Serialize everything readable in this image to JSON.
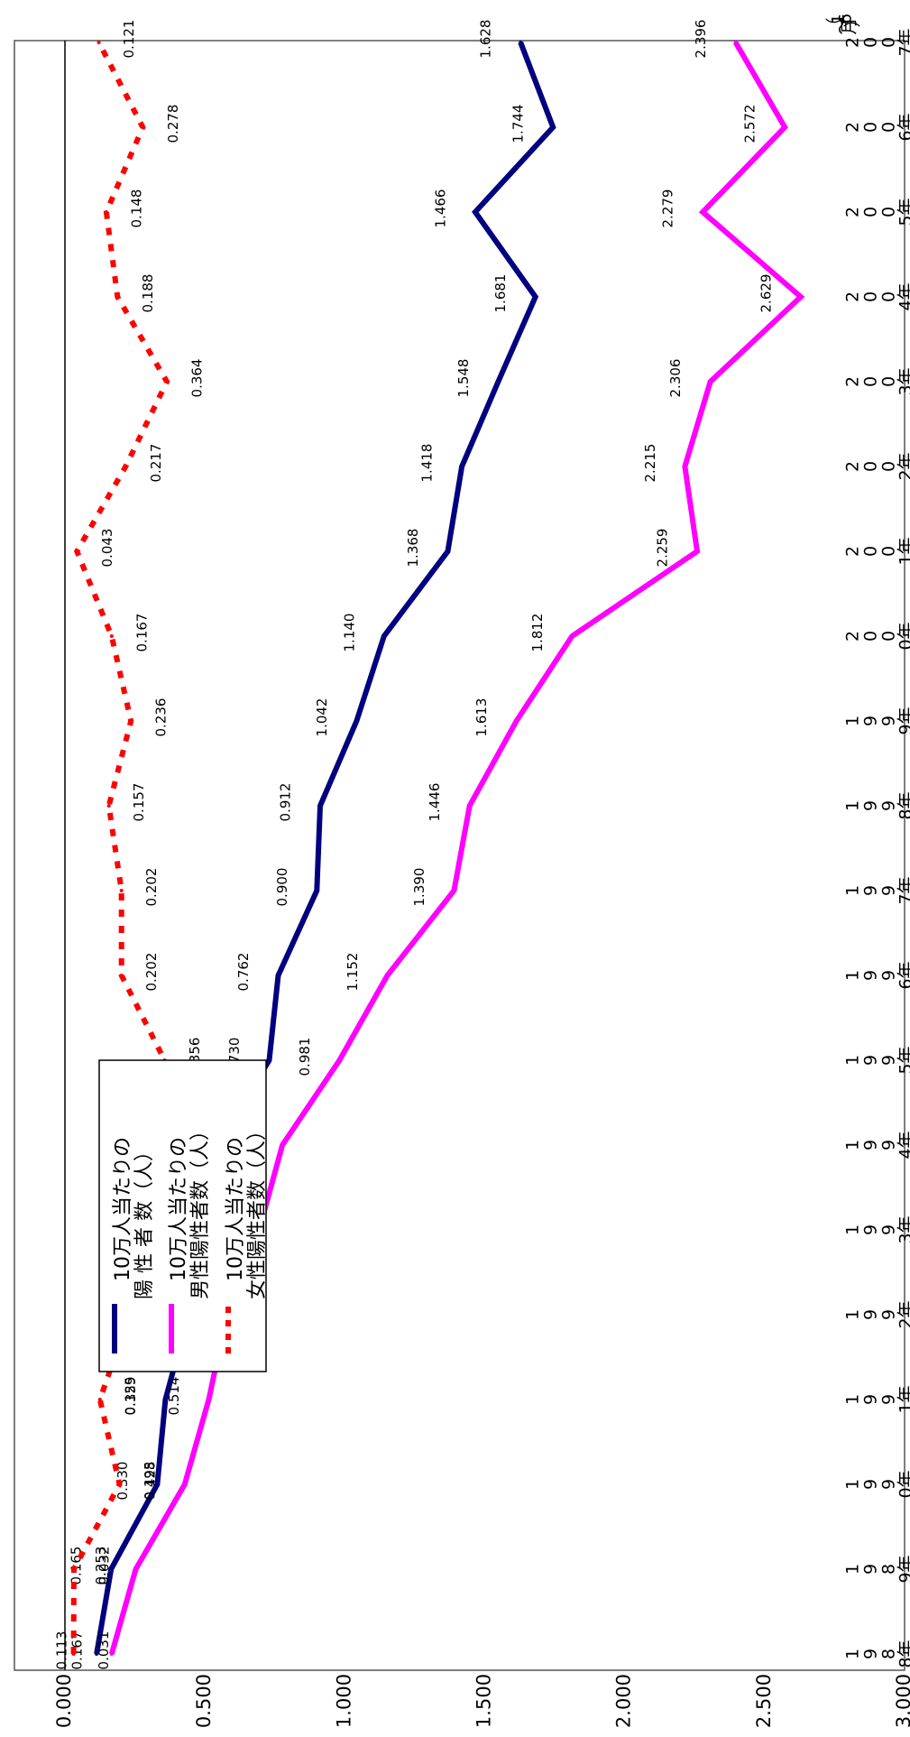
{
  "chart_data": {
    "type": "line",
    "title": "",
    "xlabel": "",
    "ylabel": "",
    "ylim": [
      0,
      3
    ],
    "y_ticks": [
      "0.000",
      "0.500",
      "1.000",
      "1.500",
      "2.000",
      "2.500",
      "3.000"
    ],
    "grid": false,
    "legend_position": "upper-left",
    "categories": [
      "1988年",
      "1989年",
      "1990年",
      "1991年",
      "1992年",
      "1993年",
      "1994年",
      "1995年",
      "1996年",
      "1997年",
      "1998年",
      "1999年",
      "2000年",
      "2001年",
      "2002年",
      "2003年",
      "2004年",
      "2005年",
      "2006年",
      "2007年（1～6月）"
    ],
    "series": [
      {
        "name": "10万人当たりの陽性者数（人）",
        "color": "#000080",
        "dash": "solid",
        "values": [
          0.113,
          0.165,
          0.33,
          0.359,
          0.441,
          0.486,
          0.545,
          0.73,
          0.762,
          0.9,
          0.912,
          1.042,
          1.14,
          1.368,
          1.418,
          1.548,
          1.681,
          1.466,
          1.744,
          1.628
        ],
        "labels": [
          "0.113",
          "0.165",
          "0.330",
          "0.359",
          "0.441",
          "0.486",
          "0.545",
          "0.730",
          "0.762",
          "0.900",
          "0.912",
          "1.042",
          "1.140",
          "1.368",
          "1.418",
          "1.548",
          "1.681",
          "1.466",
          "1.744",
          "1.628"
        ]
      },
      {
        "name": "10万人当たりの男性陽性者数（人）",
        "color": "#ff00ff",
        "dash": "solid",
        "values": [
          0.167,
          0.253,
          0.428,
          0.514,
          0.578,
          0.694,
          0.777,
          0.981,
          1.152,
          1.39,
          1.446,
          1.613,
          1.812,
          2.259,
          2.215,
          2.306,
          2.629,
          2.279,
          2.572,
          2.396
        ],
        "labels": [
          "0.167",
          "0.253",
          "0.428",
          "0.514",
          "0.578",
          "0.694",
          "0.777",
          "0.981",
          "1.152",
          "1.390",
          "1.446",
          "1.613",
          "1.812",
          "2.259",
          "2.215",
          "2.306",
          "2.629",
          "2.279",
          "2.572",
          "2.396"
        ]
      },
      {
        "name": "10万人当たりの女性陽性者数（人）",
        "color": "#ff0000",
        "dash": "dashed",
        "values": [
          0.031,
          0.032,
          0.195,
          0.125,
          0.23,
          0.173,
          0.191,
          0.356,
          0.202,
          0.202,
          0.157,
          0.236,
          0.167,
          0.043,
          0.217,
          0.364,
          0.188,
          0.148,
          0.278,
          0.121
        ],
        "labels": [
          "0.031",
          "0.032",
          "0.195",
          "0.125",
          "0.230",
          "0.173",
          "0.191",
          "0.356",
          "0.202",
          "0.202",
          "0.157",
          "0.236",
          "0.167",
          "0.043",
          "0.217",
          "0.364",
          "0.188",
          "0.148",
          "0.278",
          "0.121"
        ]
      }
    ]
  },
  "legend": {
    "entries": [
      {
        "line1": "10万人当たりの",
        "line2": "陽 性 者 数（人）"
      },
      {
        "line1": "10万人当たりの",
        "line2": "男性陽性者数（人）"
      },
      {
        "line1": "10万人当たりの",
        "line2": "女性陽性者数（人）"
      }
    ]
  }
}
